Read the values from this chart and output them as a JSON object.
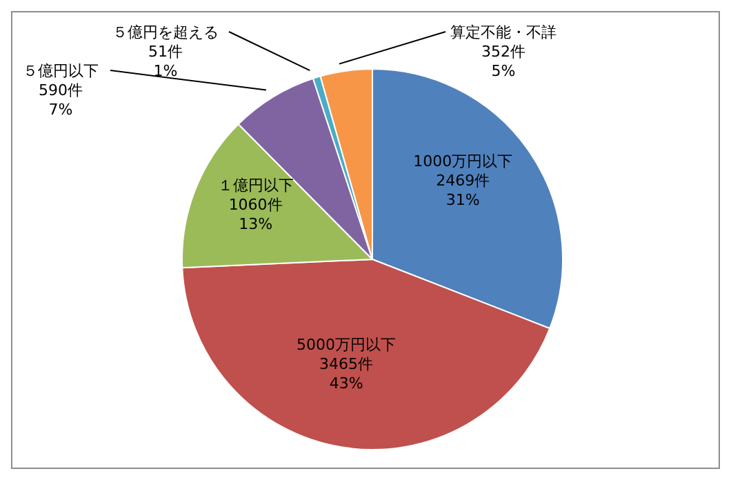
{
  "chart_data": {
    "type": "pie",
    "categories": [
      "1000万円以下",
      "5000万円以下",
      "１億円以下",
      "５億円以下",
      "５億円を超える",
      "算定不能・不詳"
    ],
    "values": [
      2469,
      3465,
      1060,
      590,
      51,
      352
    ],
    "colors": [
      "#4f81bd",
      "#c0504d",
      "#9bbb59",
      "#8064a2",
      "#4bacc6",
      "#f79646"
    ],
    "value_labels": [
      "2469件\n31%",
      "3465件\n43%",
      "1060件\n13%",
      "590件\n7%",
      "51件\n1%",
      "352件\n5%"
    ],
    "legend": false
  }
}
